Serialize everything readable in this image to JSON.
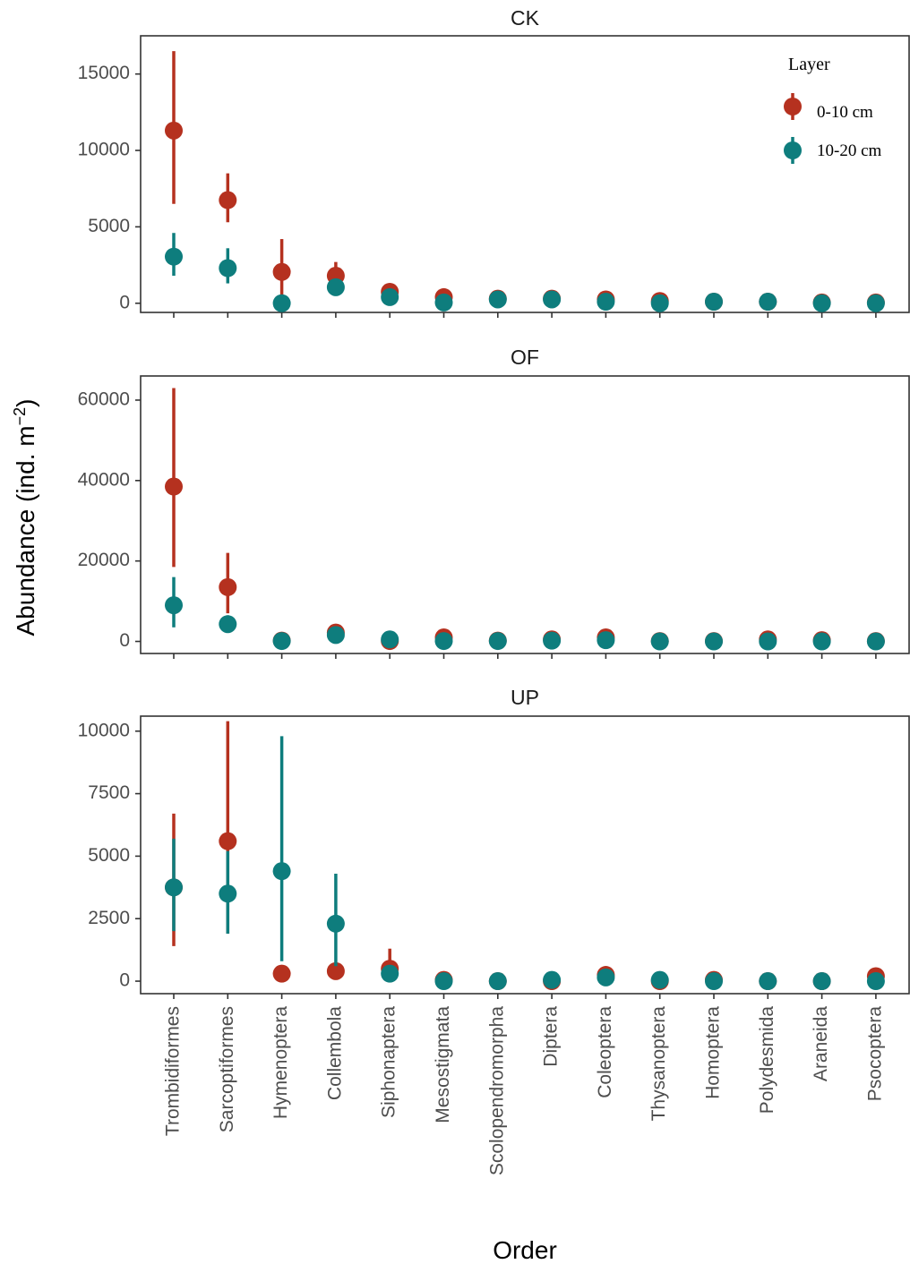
{
  "chart_data": {
    "type": "scatter",
    "xlabel": "Order",
    "ylabel": "Abundance (ind. m",
    "ylabel_superscript": "−2",
    "ylabel_close": ")",
    "categories": [
      "Trombidiformes",
      "Sarcoptiformes",
      "Hymenoptera",
      "Collembola",
      "Siphonaptera",
      "Mesostigmata",
      "Scolopendromorpha",
      "Diptera",
      "Coleoptera",
      "Thysanoptera",
      "Homoptera",
      "Polydesmida",
      "Araneida",
      "Psocoptera"
    ],
    "legend": {
      "title": "Layer",
      "placement": "top-right inside first panel",
      "entries": [
        {
          "label": "0-10 cm",
          "color": "#b5311f"
        },
        {
          "label": "10-20 cm",
          "color": "#0e7d7d"
        }
      ]
    },
    "panels": [
      {
        "name": "CK",
        "ylim": [
          -600,
          17500
        ],
        "yticks": [
          0,
          5000,
          10000,
          15000
        ],
        "series": [
          {
            "name": "0-10 cm",
            "color": "#b5311f",
            "values": [
              11300,
              6750,
              2050,
              1800,
              750,
              400,
              300,
              300,
              250,
              150,
              100,
              100,
              50,
              50
            ],
            "lower": [
              6500,
              5300,
              500,
              1200,
              450,
              200,
              150,
              150,
              100,
              50,
              20,
              20,
              0,
              0
            ],
            "upper": [
              16500,
              8500,
              4200,
              2700,
              1200,
              600,
              450,
              450,
              400,
              300,
              200,
              200,
              100,
              100
            ]
          },
          {
            "name": "10-20 cm",
            "color": "#0e7d7d",
            "values": [
              3050,
              2300,
              0,
              1050,
              400,
              50,
              250,
              250,
              100,
              0,
              100,
              100,
              0,
              0
            ],
            "lower": [
              1800,
              1300,
              0,
              800,
              200,
              0,
              100,
              100,
              0,
              0,
              0,
              0,
              0,
              0
            ],
            "upper": [
              4600,
              3600,
              100,
              1400,
              700,
              150,
              400,
              400,
              200,
              50,
              200,
              200,
              50,
              50
            ]
          }
        ]
      },
      {
        "name": "OF",
        "ylim": [
          -3000,
          66000
        ],
        "yticks": [
          0,
          20000,
          40000,
          60000
        ],
        "series": [
          {
            "name": "0-10 cm",
            "color": "#b5311f",
            "values": [
              38500,
              13500,
              200,
              2200,
              100,
              1000,
              200,
              500,
              1000,
              100,
              100,
              500,
              300,
              100
            ],
            "lower": [
              18500,
              7000,
              0,
              1200,
              0,
              300,
              0,
              100,
              300,
              0,
              0,
              0,
              0,
              0
            ],
            "upper": [
              63000,
              22000,
              600,
              3200,
              400,
              1800,
              500,
              1000,
              1700,
              300,
              300,
              1000,
              700,
              300
            ]
          },
          {
            "name": "10-20 cm",
            "color": "#0e7d7d",
            "values": [
              9000,
              4300,
              100,
              1600,
              500,
              100,
              100,
              200,
              300,
              0,
              0,
              0,
              0,
              0
            ],
            "lower": [
              3500,
              2500,
              0,
              800,
              100,
              0,
              0,
              0,
              0,
              0,
              0,
              0,
              0,
              0
            ],
            "upper": [
              16000,
              6500,
              300,
              2400,
              1000,
              300,
              300,
              500,
              700,
              100,
              100,
              100,
              100,
              100
            ]
          }
        ]
      },
      {
        "name": "UP",
        "ylim": [
          -500,
          10600
        ],
        "yticks": [
          0,
          2500,
          5000,
          7500,
          10000
        ],
        "series": [
          {
            "name": "0-10 cm",
            "color": "#b5311f",
            "values": [
              3750,
              5600,
              300,
              400,
              500,
              50,
              0,
              0,
              250,
              0,
              50,
              0,
              0,
              200
            ],
            "lower": [
              1400,
              1900,
              100,
              200,
              100,
              0,
              0,
              0,
              50,
              0,
              0,
              0,
              0,
              0
            ],
            "upper": [
              6700,
              10400,
              500,
              600,
              1300,
              150,
              50,
              50,
              450,
              50,
              150,
              50,
              50,
              400
            ]
          },
          {
            "name": "10-20 cm",
            "color": "#0e7d7d",
            "values": [
              3750,
              3500,
              4400,
              2300,
              300,
              0,
              0,
              50,
              150,
              50,
              0,
              0,
              0,
              0
            ],
            "lower": [
              2000,
              1900,
              800,
              600,
              100,
              0,
              0,
              0,
              0,
              0,
              0,
              0,
              0,
              0
            ],
            "upper": [
              5700,
              5200,
              9800,
              4300,
              500,
              50,
              50,
              150,
              350,
              150,
              50,
              50,
              50,
              50
            ]
          }
        ]
      }
    ]
  }
}
